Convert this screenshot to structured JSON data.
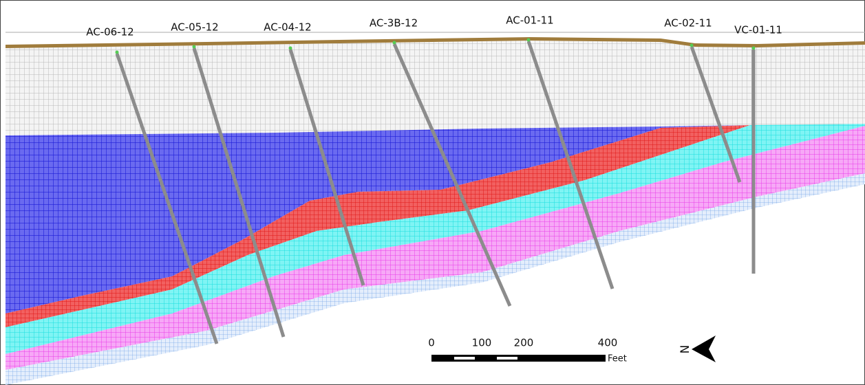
{
  "wells": [
    {
      "label": "AC-06-12"
    },
    {
      "label": "AC-05-12"
    },
    {
      "label": "AC-04-12"
    },
    {
      "label": "AC-3B-12"
    },
    {
      "label": "AC-01-11"
    },
    {
      "label": "AC-02-11"
    },
    {
      "label": "VC-01-11"
    }
  ],
  "scale_bar": {
    "ticks": [
      0,
      100,
      200,
      400
    ],
    "unit": "Feet"
  },
  "north_arrow": {
    "label": "N"
  }
}
